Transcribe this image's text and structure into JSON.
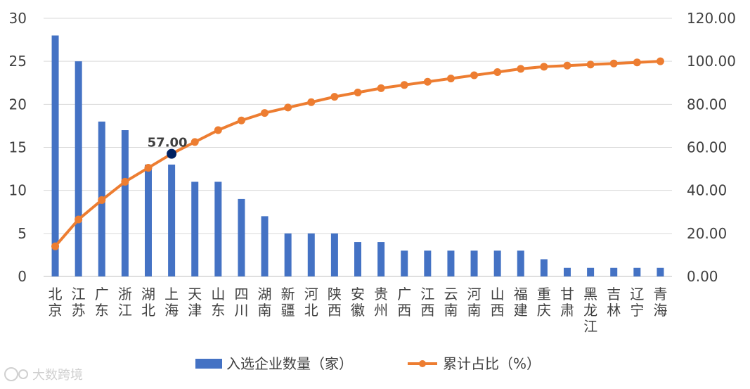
{
  "chart_data": {
    "type": "bar+line",
    "categories": [
      "北京",
      "江苏",
      "广东",
      "浙江",
      "湖北",
      "上海",
      "天津",
      "山东",
      "四川",
      "湖南",
      "新疆",
      "河北",
      "陕西",
      "安徽",
      "贵州",
      "广西",
      "江西",
      "云南",
      "河南",
      "山西",
      "福建",
      "重庆",
      "甘肃",
      "黑龙江",
      "吉林",
      "辽宁",
      "青海"
    ],
    "series": [
      {
        "name": "入选企业数量（家）",
        "kind": "bar",
        "axis": "left",
        "color": "#4472c4",
        "values": [
          28,
          25,
          18,
          17,
          13,
          13,
          11,
          11,
          9,
          7,
          5,
          5,
          5,
          4,
          4,
          3,
          3,
          3,
          3,
          3,
          3,
          2,
          1,
          1,
          1,
          1,
          1
        ]
      },
      {
        "name": "累计占比（%）",
        "kind": "line",
        "axis": "right",
        "color": "#ed7d31",
        "values": [
          14,
          26.5,
          35.5,
          44,
          50.5,
          57,
          62.5,
          68,
          72.5,
          76,
          78.5,
          81,
          83.5,
          85.5,
          87.5,
          89,
          90.5,
          92,
          93.5,
          95,
          96.5,
          97.5,
          98,
          98.5,
          99,
          99.5,
          100
        ]
      }
    ],
    "y_left": {
      "ticks": [
        "0",
        "5",
        "10",
        "15",
        "20",
        "25",
        "30"
      ],
      "ylim": [
        0,
        30
      ]
    },
    "y_right": {
      "ticks": [
        "0.00",
        "20.00",
        "40.00",
        "60.00",
        "80.00",
        "100.00",
        "120.00"
      ],
      "ylim": [
        0,
        120
      ]
    },
    "annotation": {
      "index": 5,
      "text": "57.00",
      "color": "#002060"
    },
    "legend_position": "bottom",
    "grid": true
  },
  "watermark": {
    "text": "大数跨境"
  }
}
